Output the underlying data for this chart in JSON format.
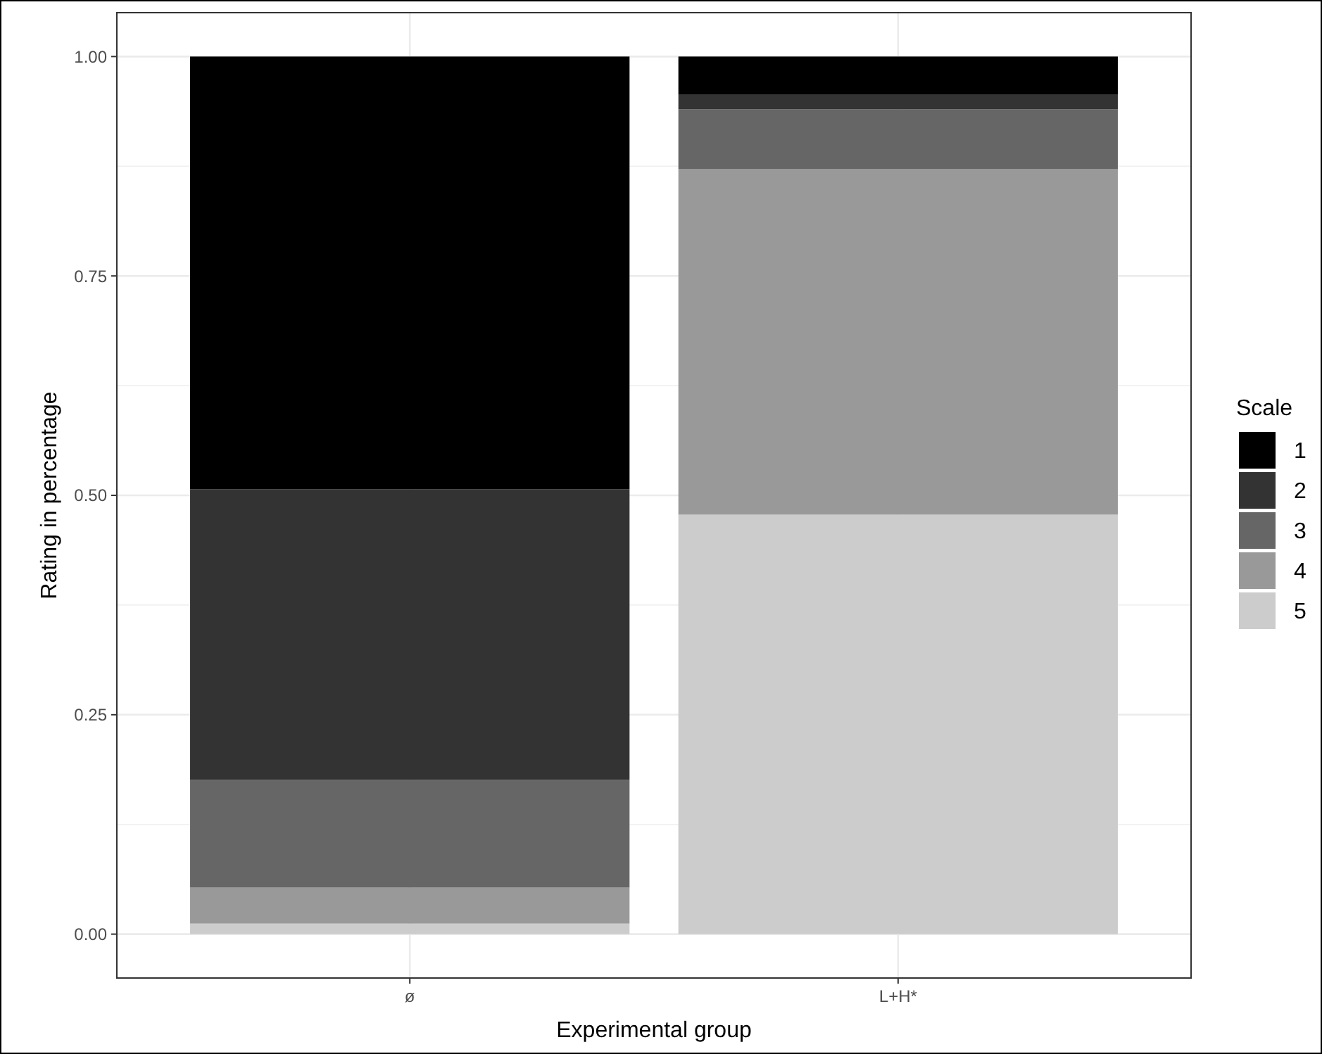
{
  "chart_data": {
    "type": "bar",
    "stacked": true,
    "xlabel": "Experimental group",
    "ylabel": "Rating in percentage",
    "legend_title": "Scale",
    "categories": [
      "ø",
      "L+H*"
    ],
    "series": [
      {
        "name": "5",
        "color": "#cccccc",
        "values": [
          0.012,
          0.478
        ]
      },
      {
        "name": "4",
        "color": "#999999",
        "values": [
          0.041,
          0.394
        ]
      },
      {
        "name": "3",
        "color": "#666666",
        "values": [
          0.123,
          0.068
        ]
      },
      {
        "name": "2",
        "color": "#333333",
        "values": [
          0.331,
          0.017
        ]
      },
      {
        "name": "1",
        "color": "#000000",
        "values": [
          0.493,
          0.043
        ]
      }
    ],
    "ylim": [
      -0.05,
      1.05
    ],
    "yticks": [
      {
        "value": 0,
        "label": "0.00"
      },
      {
        "value": 0.25,
        "label": "0.25"
      },
      {
        "value": 0.5,
        "label": "0.50"
      },
      {
        "value": 0.75,
        "label": "0.75"
      },
      {
        "value": 1,
        "label": "1.00"
      }
    ],
    "grid": true,
    "legend": "right"
  }
}
